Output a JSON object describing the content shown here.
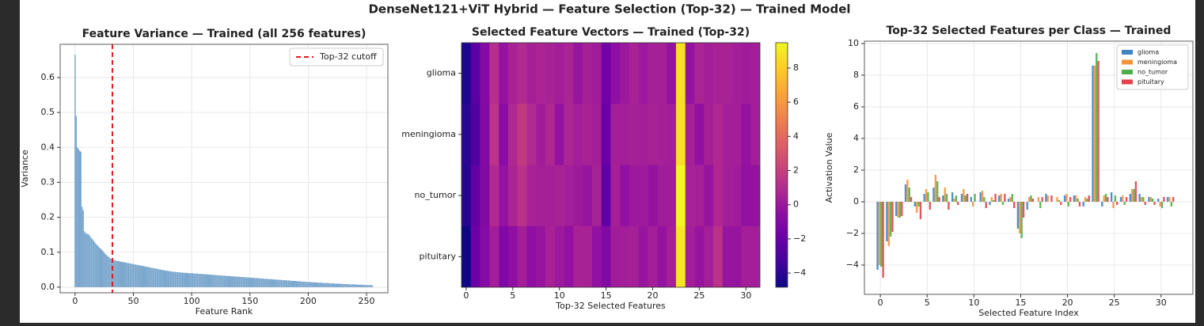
{
  "title": "DenseNet121+ViT Hybrid — Feature Selection (Top-32) — Trained Model",
  "chart_data": [
    {
      "type": "bar",
      "title": "Feature Variance — Trained (all 256 features)",
      "xlabel": "Feature Rank",
      "ylabel": "Variance",
      "color": "#7ba7cd",
      "grid": true,
      "legend": "upper right",
      "xlim": [
        -12.8,
        268.3
      ],
      "ylim": [
        -0.016,
        0.695
      ],
      "xticks": [
        0,
        50,
        100,
        150,
        200,
        250
      ],
      "yticks": [
        {
          "value": 0,
          "label": "0.0"
        },
        0.1,
        0.2,
        0.3,
        0.4,
        0.5,
        0.6
      ],
      "vlines": [
        {
          "x": 32,
          "label": "Top-32 cutoff",
          "color": "#e41a1c"
        }
      ],
      "x": [
        0,
        1,
        2,
        3,
        4,
        5,
        6,
        7,
        8,
        9,
        10,
        11,
        12,
        13,
        14,
        15,
        16,
        17,
        18,
        19,
        20,
        21,
        22,
        23,
        24,
        25,
        26,
        27,
        28,
        29,
        30,
        31,
        32,
        33,
        34,
        35,
        36,
        37,
        38,
        39,
        40,
        41,
        42,
        43,
        44,
        45,
        46,
        47,
        48,
        49,
        50,
        51,
        52,
        53,
        54,
        55,
        56,
        57,
        58,
        59,
        60,
        61,
        62,
        63,
        64,
        65,
        66,
        67,
        68,
        69,
        70,
        71,
        72,
        73,
        74,
        75,
        76,
        77,
        78,
        79,
        80,
        81,
        82,
        83,
        84,
        85,
        86,
        87,
        88,
        89,
        90,
        91,
        92,
        93,
        94,
        95,
        96,
        97,
        98,
        99,
        100,
        101,
        102,
        103,
        104,
        105,
        106,
        107,
        108,
        109,
        110,
        111,
        112,
        113,
        114,
        115,
        116,
        117,
        118,
        119,
        120,
        121,
        122,
        123,
        124,
        125,
        126,
        127,
        128,
        129,
        130,
        131,
        132,
        133,
        134,
        135,
        136,
        137,
        138,
        139,
        140,
        141,
        142,
        143,
        144,
        145,
        146,
        147,
        148,
        149,
        150,
        151,
        152,
        153,
        154,
        155,
        156,
        157,
        158,
        159,
        160,
        161,
        162,
        163,
        164,
        165,
        166,
        167,
        168,
        169,
        170,
        171,
        172,
        173,
        174,
        175,
        176,
        177,
        178,
        179,
        180,
        181,
        182,
        183,
        184,
        185,
        186,
        187,
        188,
        189,
        190,
        191,
        192,
        193,
        194,
        195,
        196,
        197,
        198,
        199,
        200,
        201,
        202,
        203,
        204,
        205,
        206,
        207,
        208,
        209,
        210,
        211,
        212,
        213,
        214,
        215,
        216,
        217,
        218,
        219,
        220,
        221,
        222,
        223,
        224,
        225,
        226,
        227,
        228,
        229,
        230,
        231,
        232,
        233,
        234,
        235,
        236,
        237,
        238,
        239,
        240,
        241,
        242,
        243,
        244,
        245,
        246,
        247,
        248,
        249,
        250,
        251,
        252,
        253,
        254,
        255
      ],
      "values": [
        0.665,
        0.49,
        0.4,
        0.395,
        0.39,
        0.388,
        0.23,
        0.22,
        0.16,
        0.155,
        0.153,
        0.152,
        0.15,
        0.145,
        0.14,
        0.137,
        0.133,
        0.128,
        0.124,
        0.12,
        0.117,
        0.113,
        0.11,
        0.107,
        0.103,
        0.099,
        0.095,
        0.092,
        0.089,
        0.086,
        0.083,
        0.08,
        0.078,
        0.077,
        0.077,
        0.076,
        0.075,
        0.075,
        0.074,
        0.073,
        0.073,
        0.072,
        0.071,
        0.071,
        0.07,
        0.069,
        0.069,
        0.068,
        0.067,
        0.067,
        0.066,
        0.065,
        0.065,
        0.064,
        0.063,
        0.063,
        0.062,
        0.061,
        0.061,
        0.06,
        0.059,
        0.059,
        0.058,
        0.057,
        0.057,
        0.056,
        0.055,
        0.055,
        0.054,
        0.053,
        0.053,
        0.052,
        0.051,
        0.051,
        0.05,
        0.049,
        0.049,
        0.048,
        0.047,
        0.047,
        0.046,
        0.046,
        0.045,
        0.045,
        0.044,
        0.044,
        0.044,
        0.043,
        0.043,
        0.043,
        0.042,
        0.042,
        0.042,
        0.041,
        0.041,
        0.041,
        0.041,
        0.04,
        0.04,
        0.04,
        0.04,
        0.04,
        0.039,
        0.039,
        0.039,
        0.039,
        0.038,
        0.038,
        0.038,
        0.038,
        0.037,
        0.037,
        0.037,
        0.037,
        0.036,
        0.036,
        0.036,
        0.036,
        0.035,
        0.035,
        0.035,
        0.035,
        0.034,
        0.034,
        0.034,
        0.034,
        0.033,
        0.033,
        0.033,
        0.033,
        0.032,
        0.032,
        0.032,
        0.032,
        0.031,
        0.031,
        0.031,
        0.031,
        0.03,
        0.03,
        0.03,
        0.03,
        0.029,
        0.029,
        0.029,
        0.029,
        0.028,
        0.028,
        0.028,
        0.028,
        0.027,
        0.027,
        0.027,
        0.027,
        0.026,
        0.026,
        0.026,
        0.026,
        0.025,
        0.025,
        0.025,
        0.025,
        0.024,
        0.024,
        0.024,
        0.024,
        0.023,
        0.023,
        0.023,
        0.023,
        0.022,
        0.022,
        0.022,
        0.022,
        0.021,
        0.021,
        0.021,
        0.021,
        0.02,
        0.02,
        0.02,
        0.02,
        0.019,
        0.019,
        0.019,
        0.019,
        0.018,
        0.018,
        0.018,
        0.018,
        0.017,
        0.017,
        0.017,
        0.017,
        0.016,
        0.016,
        0.016,
        0.016,
        0.015,
        0.015,
        0.015,
        0.015,
        0.015,
        0.014,
        0.014,
        0.014,
        0.014,
        0.014,
        0.013,
        0.013,
        0.013,
        0.013,
        0.013,
        0.012,
        0.012,
        0.012,
        0.012,
        0.012,
        0.011,
        0.011,
        0.011,
        0.011,
        0.011,
        0.01,
        0.01,
        0.01,
        0.01,
        0.01,
        0.01,
        0.009,
        0.009,
        0.009,
        0.009,
        0.009,
        0.009,
        0.008,
        0.008,
        0.008,
        0.008,
        0.008,
        0.008,
        0.008,
        0.007,
        0.007,
        0.007,
        0.007,
        0.007,
        0.007,
        0.007,
        0.006,
        0.006,
        0.006,
        0.006,
        0.006,
        0.006,
        0.005
      ]
    },
    {
      "type": "heatmap",
      "title": "Selected Feature Vectors — Trained (Top-32)",
      "xlabel": "Top-32 Selected Features",
      "colormap": "plasma",
      "xlim": [
        -0.5,
        31.5
      ],
      "xticks": [
        0,
        5,
        10,
        15,
        20,
        25,
        30
      ],
      "categories": [
        "glioma",
        "meningioma",
        "no_tumor",
        "pituitary"
      ],
      "clim": [
        -4.83,
        9.48
      ],
      "cticks": [
        {
          "value": -4,
          "label": "−4"
        },
        {
          "value": -2,
          "label": "−2"
        },
        0,
        2,
        4,
        6,
        8
      ],
      "values": [
        [
          -4.3,
          -2.5,
          -0.9,
          1.1,
          -0.3,
          0.5,
          0.9,
          0.4,
          0.6,
          0.5,
          0.3,
          0.6,
          -0.2,
          0.4,
          0.2,
          -1.7,
          -0.5,
          0.0,
          0.5,
          0.0,
          0.4,
          0.4,
          -0.3,
          8.6,
          -0.3,
          0.6,
          0.3,
          0.5,
          0.5,
          0.3,
          0.2,
          0.3
        ],
        [
          -4.0,
          -2.8,
          -1.0,
          1.4,
          -0.7,
          0.8,
          1.7,
          0.9,
          0.2,
          0.8,
          -0.3,
          0.7,
          0.3,
          0.5,
          0.3,
          -2.0,
          0.3,
          0.3,
          0.4,
          0.3,
          0.5,
          0.4,
          0.3,
          8.6,
          0.4,
          -0.4,
          0.4,
          0.8,
          0.3,
          0.3,
          -0.3,
          0.3
        ],
        [
          -4.1,
          -2.2,
          -1.0,
          0.9,
          -0.3,
          0.6,
          1.3,
          0.5,
          0.4,
          0.4,
          0.5,
          0.3,
          0.1,
          -0.2,
          0.5,
          -2.3,
          0.4,
          -0.4,
          0.0,
          0.1,
          -0.3,
          0.2,
          0.2,
          9.4,
          0.5,
          0.4,
          -0.2,
          0.8,
          0.3,
          0.2,
          -0.4,
          -0.3
        ],
        [
          -4.8,
          -1.9,
          -0.9,
          0.3,
          -1.1,
          -0.5,
          0.3,
          -0.5,
          -0.2,
          0.5,
          0.0,
          -0.4,
          0.5,
          0.5,
          -0.4,
          -1.0,
          0.2,
          0.3,
          0.4,
          -0.2,
          0.3,
          -0.3,
          0.4,
          8.9,
          0.3,
          -0.2,
          0.3,
          1.3,
          -0.2,
          -0.2,
          0.3,
          0.3
        ]
      ]
    },
    {
      "type": "grouped_bar",
      "title": "Top-32 Selected Features per Class — Trained",
      "xlabel": "Selected Feature Index",
      "ylabel": "Activation Value",
      "grid": true,
      "legend": "upper right",
      "xlim": [
        -1.7,
        33.4
      ],
      "ylim": [
        -5.85,
        10.15
      ],
      "xticks": [
        0,
        5,
        10,
        15,
        20,
        25,
        30
      ],
      "yticks": [
        {
          "value": -4,
          "label": "−4"
        },
        {
          "value": -2,
          "label": "−2"
        },
        0,
        2,
        4,
        6,
        8,
        10
      ],
      "x": [
        0,
        1,
        2,
        3,
        4,
        5,
        6,
        7,
        8,
        9,
        10,
        11,
        12,
        13,
        14,
        15,
        16,
        17,
        18,
        19,
        20,
        21,
        22,
        23,
        24,
        25,
        26,
        27,
        28,
        29,
        30,
        31
      ],
      "series": [
        {
          "name": "glioma",
          "color": "#3f84c4",
          "values": [
            -4.3,
            -2.5,
            -0.9,
            1.1,
            -0.3,
            0.5,
            0.9,
            0.4,
            0.6,
            0.5,
            0.3,
            0.6,
            -0.2,
            0.4,
            0.2,
            -1.7,
            -0.5,
            0.0,
            0.5,
            0.0,
            0.4,
            0.4,
            -0.3,
            8.6,
            -0.3,
            0.6,
            0.3,
            0.5,
            0.5,
            0.3,
            0.2,
            0.3
          ]
        },
        {
          "name": "meningioma",
          "color": "#f7923a",
          "values": [
            -4.0,
            -2.8,
            -1.0,
            1.4,
            -0.7,
            0.8,
            1.7,
            0.9,
            0.2,
            0.8,
            -0.3,
            0.7,
            0.3,
            0.5,
            0.3,
            -2.0,
            0.3,
            0.3,
            0.4,
            0.3,
            0.5,
            0.4,
            0.3,
            8.6,
            0.4,
            -0.4,
            0.4,
            0.8,
            0.3,
            0.3,
            -0.3,
            0.3
          ]
        },
        {
          "name": "no_tumor",
          "color": "#4daf4a",
          "values": [
            -4.1,
            -2.2,
            -1.0,
            0.9,
            -0.3,
            0.6,
            1.3,
            0.5,
            0.4,
            0.4,
            0.5,
            0.3,
            0.1,
            -0.2,
            0.5,
            -2.3,
            0.4,
            -0.4,
            0.0,
            0.1,
            -0.3,
            0.2,
            0.2,
            9.4,
            0.5,
            0.4,
            -0.2,
            0.8,
            0.3,
            0.2,
            -0.4,
            -0.3
          ]
        },
        {
          "name": "pituitary",
          "color": "#e3424b",
          "values": [
            -4.8,
            -1.9,
            -0.9,
            0.3,
            -1.1,
            -0.5,
            0.3,
            -0.5,
            -0.2,
            0.5,
            0.0,
            -0.4,
            0.5,
            0.5,
            -0.4,
            -1.0,
            0.2,
            0.3,
            0.4,
            -0.2,
            0.3,
            -0.3,
            0.4,
            8.9,
            0.3,
            -0.2,
            0.3,
            1.3,
            -0.2,
            -0.2,
            0.3,
            0.3
          ]
        }
      ]
    }
  ]
}
